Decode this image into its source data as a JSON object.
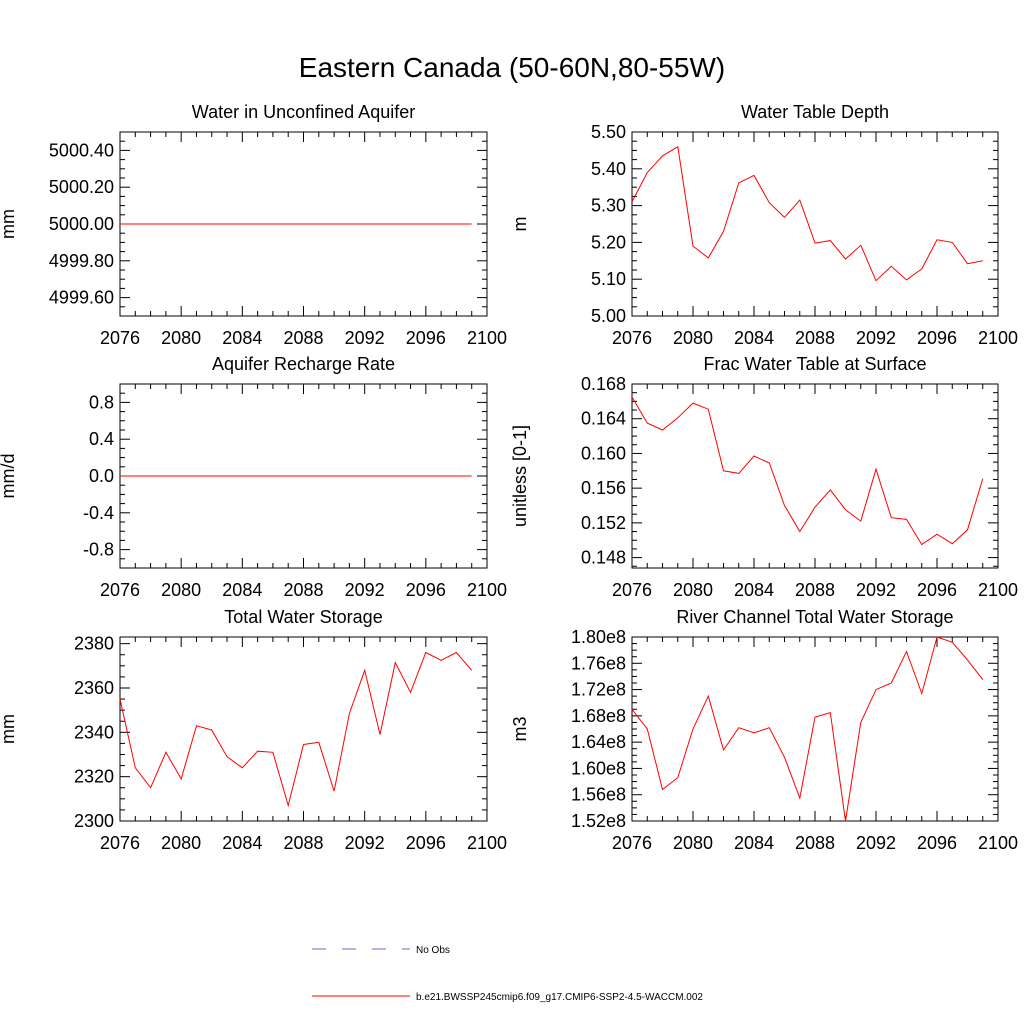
{
  "figure_title": "Eastern Canada (50-60N,80-55W)",
  "colors": {
    "model": "#ff0000",
    "obs": "#6a6acd",
    "axis": "#000000"
  },
  "legend": [
    {
      "label": "No Obs",
      "style": "dashed",
      "color": "#6a6acd"
    },
    {
      "label": "b.e21.BWSSP245cmip6.f09_g17.CMIP6-SSP2-4.5-WACCM.002",
      "style": "solid",
      "color": "#ff0000"
    }
  ],
  "chart_data": [
    {
      "type": "line",
      "title": "Water in Unconfined Aquifer",
      "ylabel": "mm",
      "xlabel": "",
      "xlim": [
        2076,
        2100
      ],
      "ylim": [
        4999.5,
        5000.5
      ],
      "xticks": [
        2076,
        2080,
        2084,
        2088,
        2092,
        2096,
        2100
      ],
      "yticks": [
        4999.6,
        4999.8,
        5000.0,
        5000.2,
        5000.4
      ],
      "yticklabels": [
        "4999.60",
        "4999.80",
        "5000.00",
        "5000.20",
        "5000.40"
      ],
      "series": [
        {
          "name": "b.e21.BWSSP245cmip6.f09_g17.CMIP6-SSP2-4.5-WACCM.002",
          "x": [
            2076,
            2077,
            2078,
            2079,
            2080,
            2081,
            2082,
            2083,
            2084,
            2085,
            2086,
            2087,
            2088,
            2089,
            2090,
            2091,
            2092,
            2093,
            2094,
            2095,
            2096,
            2097,
            2098,
            2099
          ],
          "values": [
            5000,
            5000,
            5000,
            5000,
            5000,
            5000,
            5000,
            5000,
            5000,
            5000,
            5000,
            5000,
            5000,
            5000,
            5000,
            5000,
            5000,
            5000,
            5000,
            5000,
            5000,
            5000,
            5000,
            5000
          ]
        }
      ]
    },
    {
      "type": "line",
      "title": "Water Table Depth",
      "ylabel": "m",
      "xlabel": "",
      "xlim": [
        2076,
        2100
      ],
      "ylim": [
        5.0,
        5.5
      ],
      "xticks": [
        2076,
        2080,
        2084,
        2088,
        2092,
        2096,
        2100
      ],
      "yticks": [
        5.0,
        5.1,
        5.2,
        5.3,
        5.4,
        5.5
      ],
      "yticklabels": [
        "5.00",
        "5.10",
        "5.20",
        "5.30",
        "5.40",
        "5.50"
      ],
      "series": [
        {
          "name": "b.e21.BWSSP245cmip6.f09_g17.CMIP6-SSP2-4.5-WACCM.002",
          "x": [
            2076,
            2077,
            2078,
            2079,
            2080,
            2081,
            2082,
            2083,
            2084,
            2085,
            2086,
            2087,
            2088,
            2089,
            2090,
            2091,
            2092,
            2093,
            2094,
            2095,
            2096,
            2097,
            2098,
            2099
          ],
          "values": [
            5.31,
            5.39,
            5.435,
            5.46,
            5.19,
            5.158,
            5.23,
            5.362,
            5.382,
            5.308,
            5.268,
            5.315,
            5.198,
            5.205,
            5.155,
            5.192,
            5.096,
            5.135,
            5.098,
            5.128,
            5.207,
            5.2,
            5.142,
            5.15
          ]
        }
      ]
    },
    {
      "type": "line",
      "title": "Aquifer Recharge Rate",
      "ylabel": "mm/d",
      "xlabel": "",
      "xlim": [
        2076,
        2100
      ],
      "ylim": [
        -1.0,
        1.0
      ],
      "xticks": [
        2076,
        2080,
        2084,
        2088,
        2092,
        2096,
        2100
      ],
      "yticks": [
        -0.8,
        -0.4,
        0.0,
        0.4,
        0.8
      ],
      "yticklabels": [
        "-0.8",
        "-0.4",
        "0.0",
        "0.4",
        "0.8"
      ],
      "series": [
        {
          "name": "b.e21.BWSSP245cmip6.f09_g17.CMIP6-SSP2-4.5-WACCM.002",
          "x": [
            2076,
            2077,
            2078,
            2079,
            2080,
            2081,
            2082,
            2083,
            2084,
            2085,
            2086,
            2087,
            2088,
            2089,
            2090,
            2091,
            2092,
            2093,
            2094,
            2095,
            2096,
            2097,
            2098,
            2099
          ],
          "values": [
            0,
            0,
            0,
            0,
            0,
            0,
            0,
            0,
            0,
            0,
            0,
            0,
            0,
            0,
            0,
            0,
            0,
            0,
            0,
            0,
            0,
            0,
            0,
            0
          ]
        }
      ]
    },
    {
      "type": "line",
      "title": "Frac Water Table at Surface",
      "ylabel": "unitless [0-1]",
      "xlabel": "",
      "xlim": [
        2076,
        2100
      ],
      "ylim": [
        0.1468,
        0.168
      ],
      "xticks": [
        2076,
        2080,
        2084,
        2088,
        2092,
        2096,
        2100
      ],
      "yticks": [
        0.148,
        0.152,
        0.156,
        0.16,
        0.164,
        0.168
      ],
      "yticklabels": [
        "0.148",
        "0.152",
        "0.156",
        "0.160",
        "0.164",
        "0.168"
      ],
      "series": [
        {
          "name": "b.e21.BWSSP245cmip6.f09_g17.CMIP6-SSP2-4.5-WACCM.002",
          "x": [
            2076,
            2077,
            2078,
            2079,
            2080,
            2081,
            2082,
            2083,
            2084,
            2085,
            2086,
            2087,
            2088,
            2089,
            2090,
            2091,
            2092,
            2093,
            2094,
            2095,
            2096,
            2097,
            2098,
            2099
          ],
          "values": [
            0.1665,
            0.1635,
            0.1627,
            0.1641,
            0.1658,
            0.1651,
            0.158,
            0.1577,
            0.1597,
            0.1589,
            0.154,
            0.151,
            0.1538,
            0.1558,
            0.1535,
            0.1522,
            0.1582,
            0.1526,
            0.1524,
            0.1495,
            0.1507,
            0.1496,
            0.1512,
            0.1571
          ]
        }
      ]
    },
    {
      "type": "line",
      "title": "Total Water Storage",
      "ylabel": "mm",
      "xlabel": "",
      "xlim": [
        2076,
        2100
      ],
      "ylim": [
        2300,
        2383
      ],
      "xticks": [
        2076,
        2080,
        2084,
        2088,
        2092,
        2096,
        2100
      ],
      "yticks": [
        2300,
        2320,
        2340,
        2360,
        2380
      ],
      "yticklabels": [
        "2300",
        "2320",
        "2340",
        "2360",
        "2380"
      ],
      "series": [
        {
          "name": "b.e21.BWSSP245cmip6.f09_g17.CMIP6-SSP2-4.5-WACCM.002",
          "x": [
            2076,
            2077,
            2078,
            2079,
            2080,
            2081,
            2082,
            2083,
            2084,
            2085,
            2086,
            2087,
            2088,
            2089,
            2090,
            2091,
            2092,
            2093,
            2094,
            2095,
            2096,
            2097,
            2098,
            2099
          ],
          "values": [
            2355,
            2324,
            2315,
            2331,
            2319,
            2343,
            2341,
            2329,
            2324,
            2331.5,
            2331,
            2307,
            2334.5,
            2335.5,
            2313.5,
            2348.5,
            2368,
            2339,
            2371.5,
            2358,
            2376,
            2372.5,
            2376,
            2368
          ]
        }
      ]
    },
    {
      "type": "line",
      "title": "River Channel Total Water Storage",
      "ylabel": "m3",
      "xlabel": "",
      "xlim": [
        2076,
        2100
      ],
      "ylim": [
        152000000.0,
        180000000.0
      ],
      "xticks": [
        2076,
        2080,
        2084,
        2088,
        2092,
        2096,
        2100
      ],
      "yticks": [
        152000000.0,
        156000000.0,
        160000000.0,
        164000000.0,
        168000000.0,
        172000000.0,
        176000000.0,
        180000000.0
      ],
      "yticklabels": [
        "1.52e8",
        "1.56e8",
        "1.60e8",
        "1.64e8",
        "1.68e8",
        "1.72e8",
        "1.76e8",
        "1.80e8"
      ],
      "series": [
        {
          "name": "b.e21.BWSSP245cmip6.f09_g17.CMIP6-SSP2-4.5-WACCM.002",
          "x": [
            2076,
            2077,
            2078,
            2079,
            2080,
            2081,
            2082,
            2083,
            2084,
            2085,
            2086,
            2087,
            2088,
            2089,
            2090,
            2091,
            2092,
            2093,
            2094,
            2095,
            2096,
            2097,
            2098,
            2099
          ],
          "values": [
            169000000.0,
            166000000.0,
            156800000.0,
            158600000.0,
            166000000.0,
            171000000.0,
            162800000.0,
            166200000.0,
            165400000.0,
            166200000.0,
            161700000.0,
            155500000.0,
            167800000.0,
            168500000.0,
            152000000.0,
            167000000.0,
            172000000.0,
            173000000.0,
            177800000.0,
            171400000.0,
            180000000.0,
            179200000.0,
            176500000.0,
            173500000.0
          ]
        }
      ]
    }
  ]
}
